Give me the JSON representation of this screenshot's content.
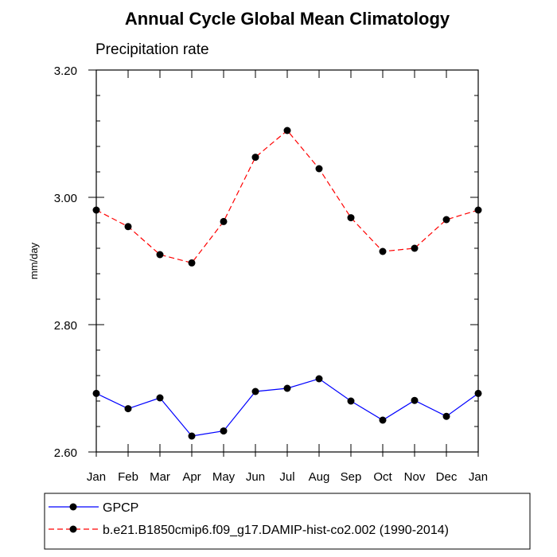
{
  "chart_data": {
    "type": "line",
    "title": "Annual Cycle Global Mean Climatology",
    "subtitle": "Precipitation rate",
    "ylabel": "mm/day",
    "xlabel": "",
    "categories": [
      "Jan",
      "Feb",
      "Mar",
      "Apr",
      "May",
      "Jun",
      "Jul",
      "Aug",
      "Sep",
      "Oct",
      "Nov",
      "Dec",
      "Jan"
    ],
    "ylim": [
      2.6,
      3.2
    ],
    "yticks": [
      2.6,
      2.8,
      3.0,
      3.2
    ],
    "ytick_labels": [
      "2.60",
      "2.80",
      "3.00",
      "3.20"
    ],
    "legend_position": "bottom",
    "grid": false,
    "series": [
      {
        "name": "GPCP",
        "color": "#0000ff",
        "line_style": "solid",
        "values": [
          2.692,
          2.668,
          2.685,
          2.625,
          2.633,
          2.695,
          2.7,
          2.715,
          2.68,
          2.65,
          2.681,
          2.656,
          2.692
        ]
      },
      {
        "name": "b.e21.B1850cmip6.f09_g17.DAMIP-hist-co2.002 (1990-2014)",
        "color": "#ff0000",
        "line_style": "dashed",
        "values": [
          2.98,
          2.954,
          2.91,
          2.897,
          2.962,
          3.063,
          3.105,
          3.045,
          2.968,
          2.915,
          2.92,
          2.965,
          2.98
        ]
      }
    ]
  }
}
